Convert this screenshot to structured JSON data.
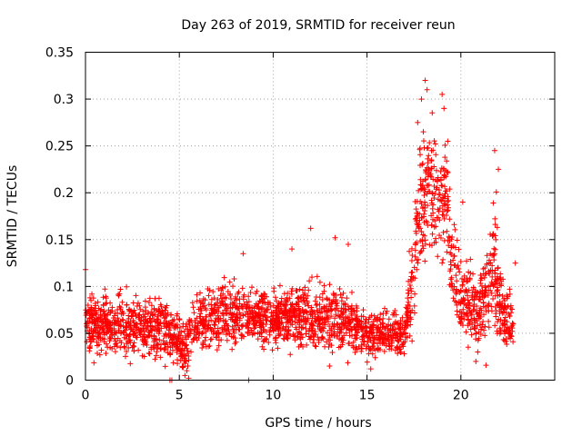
{
  "chart_data": {
    "type": "scatter",
    "title": "Day 263 of 2019, SRMTID for receiver reun",
    "xlabel": "GPS time / hours",
    "ylabel": "SRMTID / TECUs",
    "xlim": [
      0,
      25
    ],
    "ylim": [
      0,
      0.35
    ],
    "xticks": [
      "0",
      "5",
      "10",
      "15",
      "20"
    ],
    "yticks": [
      "0",
      "0.05",
      "0.1",
      "0.15",
      "0.2",
      "0.25",
      "0.3",
      "0.35"
    ],
    "xtick_values": [
      0,
      5,
      10,
      15,
      20
    ],
    "ytick_values": [
      0,
      0.05,
      0.1,
      0.15,
      0.2,
      0.25,
      0.3,
      0.35
    ],
    "grid": true,
    "marker": "+",
    "color": "#ff0000",
    "series": [
      {
        "name": "SRMTID",
        "profile": [
          {
            "t": 0.0,
            "mean": 0.06,
            "spread": 0.022
          },
          {
            "t": 1.0,
            "mean": 0.06,
            "spread": 0.022
          },
          {
            "t": 2.0,
            "mean": 0.058,
            "spread": 0.022
          },
          {
            "t": 3.0,
            "mean": 0.055,
            "spread": 0.022
          },
          {
            "t": 4.0,
            "mean": 0.058,
            "spread": 0.022
          },
          {
            "t": 4.6,
            "mean": 0.045,
            "spread": 0.018
          },
          {
            "t": 5.2,
            "mean": 0.04,
            "spread": 0.018
          },
          {
            "t": 6.0,
            "mean": 0.06,
            "spread": 0.02
          },
          {
            "t": 7.0,
            "mean": 0.07,
            "spread": 0.022
          },
          {
            "t": 8.0,
            "mean": 0.07,
            "spread": 0.022
          },
          {
            "t": 9.0,
            "mean": 0.068,
            "spread": 0.02
          },
          {
            "t": 10.0,
            "mean": 0.065,
            "spread": 0.02
          },
          {
            "t": 11.0,
            "mean": 0.07,
            "spread": 0.022
          },
          {
            "t": 12.0,
            "mean": 0.065,
            "spread": 0.024
          },
          {
            "t": 13.0,
            "mean": 0.065,
            "spread": 0.024
          },
          {
            "t": 14.0,
            "mean": 0.065,
            "spread": 0.022
          },
          {
            "t": 15.0,
            "mean": 0.05,
            "spread": 0.016
          },
          {
            "t": 16.0,
            "mean": 0.05,
            "spread": 0.016
          },
          {
            "t": 17.0,
            "mean": 0.05,
            "spread": 0.016
          },
          {
            "t": 17.4,
            "mean": 0.1,
            "spread": 0.035
          },
          {
            "t": 17.8,
            "mean": 0.2,
            "spread": 0.045
          },
          {
            "t": 18.3,
            "mean": 0.21,
            "spread": 0.05
          },
          {
            "t": 18.8,
            "mean": 0.18,
            "spread": 0.04
          },
          {
            "t": 19.2,
            "mean": 0.2,
            "spread": 0.045
          },
          {
            "t": 19.6,
            "mean": 0.11,
            "spread": 0.03
          },
          {
            "t": 20.0,
            "mean": 0.1,
            "spread": 0.03
          },
          {
            "t": 20.5,
            "mean": 0.08,
            "spread": 0.028
          },
          {
            "t": 21.0,
            "mean": 0.075,
            "spread": 0.028
          },
          {
            "t": 21.8,
            "mean": 0.12,
            "spread": 0.05
          },
          {
            "t": 22.3,
            "mean": 0.07,
            "spread": 0.022
          },
          {
            "t": 22.8,
            "mean": 0.06,
            "spread": 0.02
          }
        ],
        "sample_count": 2600,
        "notable_points": [
          {
            "x": 18.1,
            "y": 0.32
          },
          {
            "x": 18.2,
            "y": 0.31
          },
          {
            "x": 17.9,
            "y": 0.3
          },
          {
            "x": 19.0,
            "y": 0.305
          },
          {
            "x": 19.1,
            "y": 0.29
          },
          {
            "x": 17.7,
            "y": 0.275
          },
          {
            "x": 18.0,
            "y": 0.265
          },
          {
            "x": 19.3,
            "y": 0.255
          },
          {
            "x": 21.8,
            "y": 0.245
          },
          {
            "x": 22.0,
            "y": 0.225
          },
          {
            "x": 20.1,
            "y": 0.19
          },
          {
            "x": 12.0,
            "y": 0.162
          },
          {
            "x": 13.3,
            "y": 0.152
          },
          {
            "x": 11.0,
            "y": 0.14
          },
          {
            "x": 8.4,
            "y": 0.135
          },
          {
            "x": 14.0,
            "y": 0.145
          },
          {
            "x": 22.9,
            "y": 0.125
          },
          {
            "x": 0.0,
            "y": 0.118
          },
          {
            "x": 4.6,
            "y": 0.0
          },
          {
            "x": 4.5,
            "y": 0.0
          },
          {
            "x": 8.7,
            "y": 0.0
          },
          {
            "x": 5.3,
            "y": 0.005
          },
          {
            "x": 5.4,
            "y": 0.01
          },
          {
            "x": 5.45,
            "y": 0.015
          },
          {
            "x": 5.5,
            "y": 0.002
          },
          {
            "x": 5.35,
            "y": 0.02
          },
          {
            "x": 13.0,
            "y": 0.015
          },
          {
            "x": 15.2,
            "y": 0.012
          },
          {
            "x": 20.8,
            "y": 0.02
          },
          {
            "x": 20.9,
            "y": 0.03
          }
        ]
      }
    ]
  }
}
